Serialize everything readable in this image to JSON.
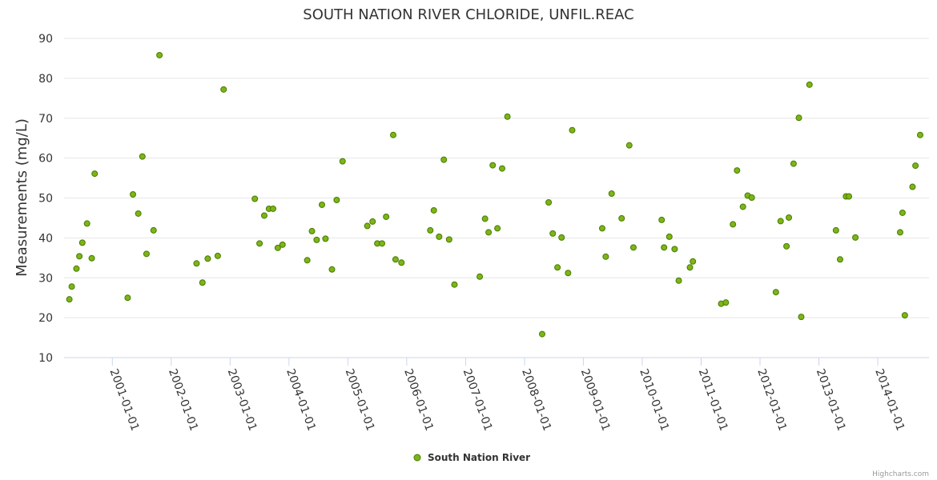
{
  "chart_data": {
    "type": "scatter",
    "title": "SOUTH NATION RIVER CHLORIDE, UNFIL.REAC",
    "xlabel": "",
    "ylabel": "Measurements (mg/L)",
    "ylim": [
      10,
      90
    ],
    "yticks": [
      10,
      20,
      30,
      40,
      50,
      60,
      70,
      80,
      90
    ],
    "xlim": [
      2000.18,
      2014.87
    ],
    "xticks": [
      {
        "label": "2001-01-01",
        "value": 2001.0
      },
      {
        "label": "2002-01-01",
        "value": 2002.0
      },
      {
        "label": "2003-01-01",
        "value": 2003.0
      },
      {
        "label": "2004-01-01",
        "value": 2004.0
      },
      {
        "label": "2005-01-01",
        "value": 2005.0
      },
      {
        "label": "2006-01-01",
        "value": 2006.0
      },
      {
        "label": "2007-01-01",
        "value": 2007.0
      },
      {
        "label": "2008-01-01",
        "value": 2008.0
      },
      {
        "label": "2009-01-01",
        "value": 2009.0
      },
      {
        "label": "2010-01-01",
        "value": 2010.0
      },
      {
        "label": "2011-01-01",
        "value": 2011.0
      },
      {
        "label": "2012-01-01",
        "value": 2012.0
      },
      {
        "label": "2013-01-01",
        "value": 2013.0
      },
      {
        "label": "2014-01-01",
        "value": 2014.0
      }
    ],
    "grid": true,
    "legend_position": "bottom-center",
    "series": [
      {
        "name": "South Nation River",
        "color": "#7cb518",
        "outline": "#4a7a00",
        "points": [
          [
            2000.27,
            24.6
          ],
          [
            2000.31,
            27.8
          ],
          [
            2000.39,
            32.3
          ],
          [
            2000.44,
            35.4
          ],
          [
            2000.49,
            38.8
          ],
          [
            2000.57,
            43.6
          ],
          [
            2000.65,
            34.9
          ],
          [
            2000.7,
            56.1
          ],
          [
            2001.26,
            25.0
          ],
          [
            2001.35,
            50.9
          ],
          [
            2001.44,
            46.1
          ],
          [
            2001.51,
            60.4
          ],
          [
            2001.58,
            36.0
          ],
          [
            2001.7,
            41.9
          ],
          [
            2001.8,
            85.8
          ],
          [
            2002.43,
            33.6
          ],
          [
            2002.53,
            28.8
          ],
          [
            2002.62,
            34.8
          ],
          [
            2002.79,
            35.5
          ],
          [
            2002.89,
            77.2
          ],
          [
            2003.42,
            49.8
          ],
          [
            2003.5,
            38.6
          ],
          [
            2003.58,
            45.6
          ],
          [
            2003.66,
            47.3
          ],
          [
            2003.73,
            47.3
          ],
          [
            2003.81,
            37.5
          ],
          [
            2003.89,
            38.3
          ],
          [
            2004.31,
            34.4
          ],
          [
            2004.39,
            41.7
          ],
          [
            2004.47,
            39.5
          ],
          [
            2004.56,
            48.3
          ],
          [
            2004.62,
            39.8
          ],
          [
            2004.73,
            32.1
          ],
          [
            2004.81,
            49.5
          ],
          [
            2004.91,
            59.2
          ],
          [
            2005.33,
            43.0
          ],
          [
            2005.42,
            44.1
          ],
          [
            2005.5,
            38.6
          ],
          [
            2005.58,
            38.6
          ],
          [
            2005.65,
            45.3
          ],
          [
            2005.77,
            65.8
          ],
          [
            2005.81,
            34.6
          ],
          [
            2005.91,
            33.8
          ],
          [
            2006.4,
            41.9
          ],
          [
            2006.46,
            46.9
          ],
          [
            2006.55,
            40.3
          ],
          [
            2006.63,
            59.6
          ],
          [
            2006.72,
            39.6
          ],
          [
            2006.81,
            28.3
          ],
          [
            2007.24,
            30.3
          ],
          [
            2007.33,
            44.8
          ],
          [
            2007.39,
            41.4
          ],
          [
            2007.46,
            58.2
          ],
          [
            2007.54,
            42.4
          ],
          [
            2007.62,
            57.4
          ],
          [
            2007.71,
            70.4
          ],
          [
            2008.3,
            15.9
          ],
          [
            2008.41,
            48.9
          ],
          [
            2008.48,
            41.1
          ],
          [
            2008.56,
            32.6
          ],
          [
            2008.63,
            40.1
          ],
          [
            2008.74,
            31.2
          ],
          [
            2008.81,
            67.0
          ],
          [
            2009.32,
            42.4
          ],
          [
            2009.38,
            35.3
          ],
          [
            2009.48,
            51.1
          ],
          [
            2009.65,
            44.9
          ],
          [
            2009.78,
            63.2
          ],
          [
            2009.85,
            37.6
          ],
          [
            2010.33,
            44.5
          ],
          [
            2010.37,
            37.6
          ],
          [
            2010.46,
            40.3
          ],
          [
            2010.55,
            37.2
          ],
          [
            2010.62,
            29.3
          ],
          [
            2010.81,
            32.6
          ],
          [
            2010.86,
            34.1
          ],
          [
            2011.34,
            23.5
          ],
          [
            2011.42,
            23.8
          ],
          [
            2011.54,
            43.4
          ],
          [
            2011.61,
            56.9
          ],
          [
            2011.71,
            47.8
          ],
          [
            2011.79,
            50.6
          ],
          [
            2011.86,
            50.1
          ],
          [
            2012.27,
            26.4
          ],
          [
            2012.35,
            44.2
          ],
          [
            2012.45,
            37.9
          ],
          [
            2012.49,
            45.1
          ],
          [
            2012.57,
            58.6
          ],
          [
            2012.66,
            70.1
          ],
          [
            2012.7,
            20.2
          ],
          [
            2012.84,
            78.4
          ],
          [
            2013.29,
            41.9
          ],
          [
            2013.36,
            34.6
          ],
          [
            2013.46,
            50.4
          ],
          [
            2013.51,
            50.4
          ],
          [
            2013.62,
            40.1
          ],
          [
            2014.38,
            41.4
          ],
          [
            2014.42,
            46.3
          ],
          [
            2014.46,
            20.6
          ],
          [
            2014.59,
            52.8
          ],
          [
            2014.64,
            58.1
          ],
          [
            2014.72,
            65.8
          ]
        ]
      }
    ]
  },
  "legend": {
    "label": "South Nation River"
  },
  "credits": "Highcharts.com"
}
